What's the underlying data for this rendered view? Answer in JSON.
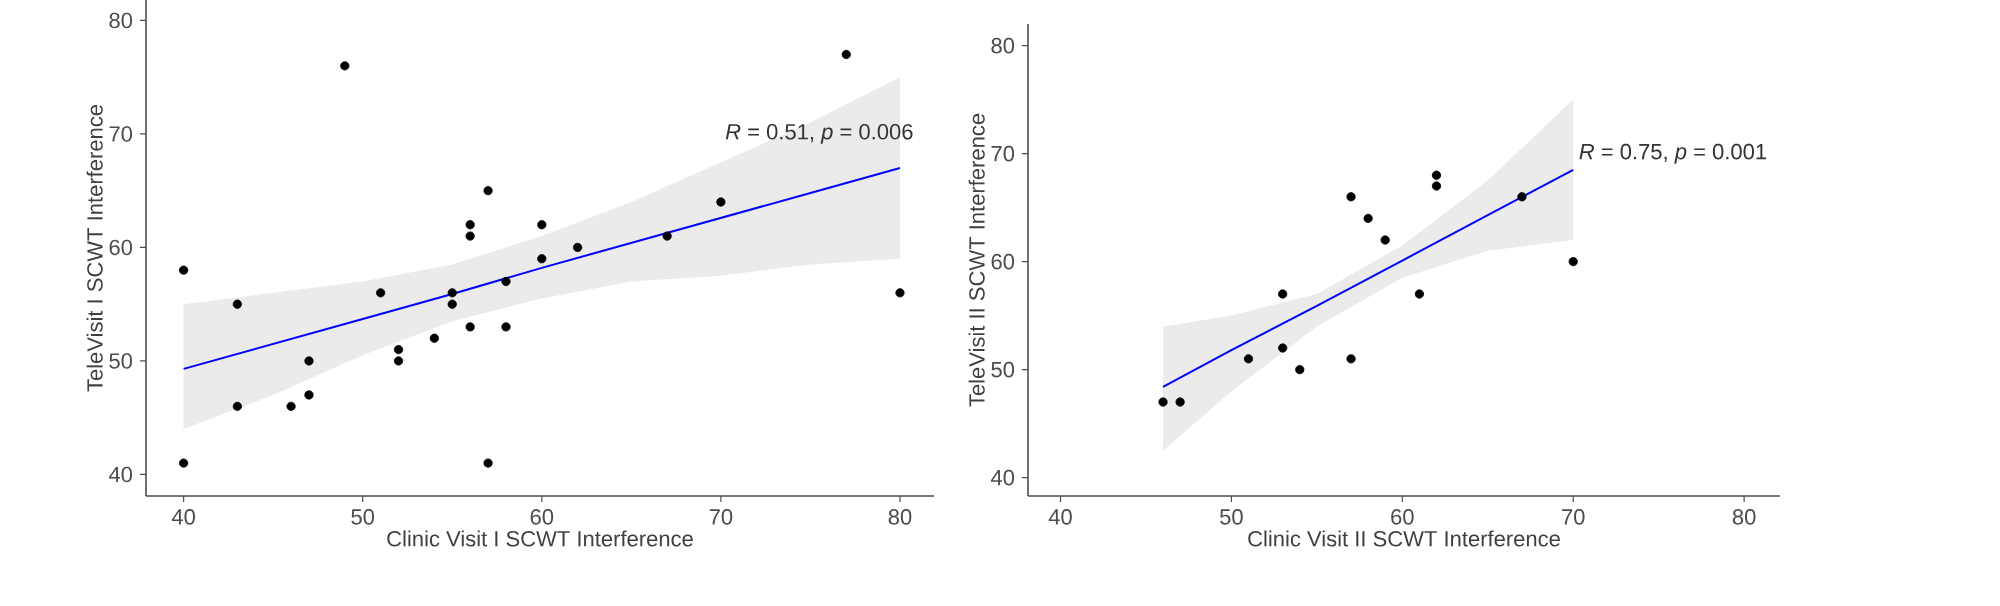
{
  "chart_data": [
    {
      "type": "scatter",
      "xlabel": "Clinic Visit I SCWT Interference",
      "ylabel": "TeleVisit I SCWT Interference",
      "xlim": [
        37.9,
        81.9
      ],
      "ylim": [
        38.1,
        81.8
      ],
      "xticks": [
        40,
        50,
        60,
        70,
        80
      ],
      "yticks": [
        40,
        50,
        60,
        70,
        80
      ],
      "marker": "circle",
      "annotations": [
        "*R* = 0.51, *p* = 0.006"
      ],
      "series": [
        {
          "type": "scatter",
          "color": "#000000",
          "x": [
            40,
            40,
            43,
            43,
            46,
            47,
            47,
            49,
            51,
            52,
            52,
            54,
            55,
            55,
            56,
            56,
            56,
            57,
            57,
            58,
            58,
            60,
            60,
            62,
            67,
            70,
            77,
            80
          ],
          "values": [
            58,
            41,
            55,
            46,
            46,
            50,
            47,
            76,
            56,
            51,
            50,
            52,
            56,
            55,
            62,
            61,
            53,
            65,
            41,
            57,
            53,
            62,
            59,
            60,
            61,
            64,
            77,
            56
          ]
        },
        {
          "type": "line",
          "color": "#0000ff",
          "marker": "none",
          "x": [
            40,
            45,
            50,
            55,
            60,
            65,
            70,
            75,
            80
          ],
          "values": [
            49.3,
            51.5,
            53.7,
            55.9,
            58.2,
            60.4,
            62.6,
            64.8,
            67.0
          ],
          "lower": [
            44,
            47,
            50.5,
            53.5,
            55.5,
            57,
            57.5,
            58.5,
            59
          ],
          "upper": [
            55,
            56,
            57,
            58.5,
            61,
            64,
            67.5,
            71,
            75
          ]
        }
      ]
    },
    {
      "type": "scatter",
      "xlabel": "Clinic Visit II SCWT Interference",
      "ylabel": "TeleVisit II SCWT Interference",
      "xlim": [
        38.1,
        82.1
      ],
      "ylim": [
        38.3,
        82
      ],
      "xticks": [
        40,
        50,
        60,
        70,
        80
      ],
      "yticks": [
        40,
        50,
        60,
        70,
        80
      ],
      "marker": "circle",
      "annotations": [
        "*R* = 0.75, *p* = 0.001"
      ],
      "series": [
        {
          "type": "scatter",
          "color": "#000000",
          "x": [
            46,
            47,
            51,
            53,
            53,
            54,
            57,
            57,
            58,
            59,
            61,
            62,
            62,
            67,
            70
          ],
          "values": [
            47,
            47,
            51,
            57,
            52,
            50,
            66,
            51,
            64,
            62,
            57,
            68,
            67,
            66,
            60
          ]
        },
        {
          "type": "line",
          "color": "#0000ff",
          "marker": "none",
          "x": [
            46,
            50,
            55,
            60,
            65,
            70
          ],
          "values": [
            48.4,
            51.8,
            55.9,
            60.1,
            64.3,
            68.5
          ],
          "lower": [
            42.5,
            48,
            54,
            58.5,
            61,
            62
          ],
          "upper": [
            54,
            55,
            57,
            61.5,
            67.5,
            75
          ]
        }
      ]
    }
  ]
}
